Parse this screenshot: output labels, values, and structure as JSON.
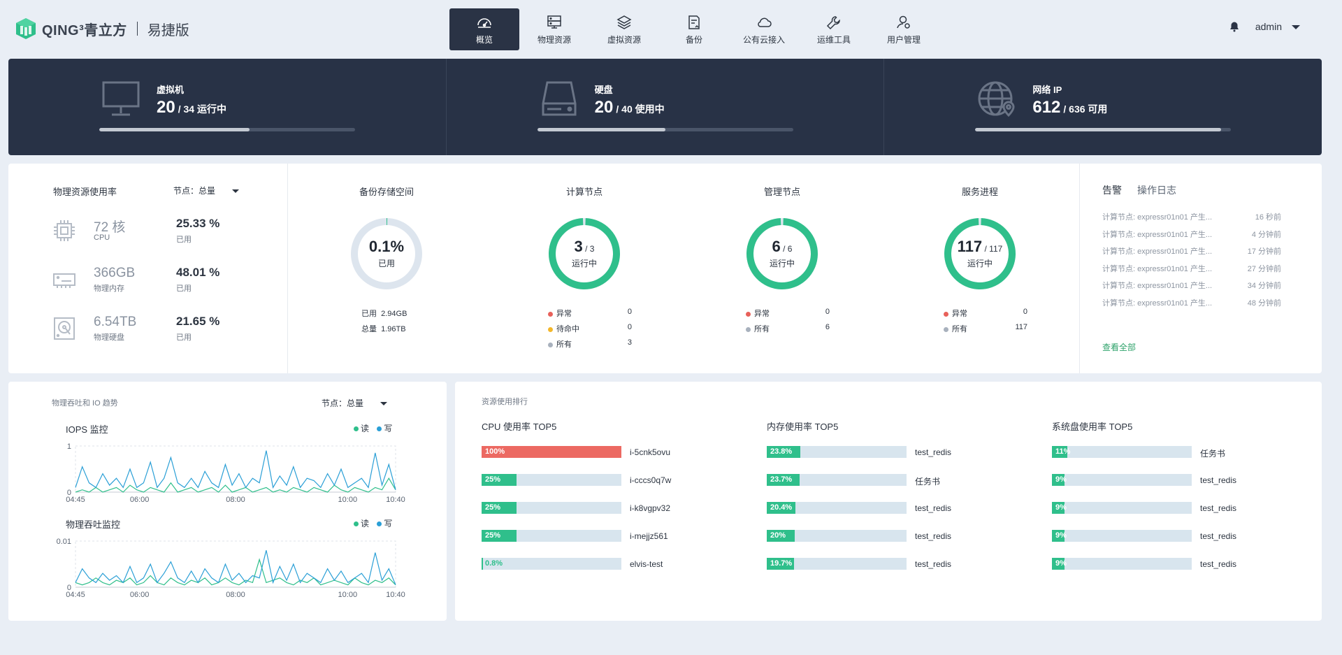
{
  "brand": {
    "name": "QING³青立方",
    "edition": "易捷版"
  },
  "nav": [
    {
      "label": "概览",
      "icon": "dashboard-icon",
      "active": true
    },
    {
      "label": "物理资源",
      "icon": "server-icon",
      "active": false
    },
    {
      "label": "虚拟资源",
      "icon": "layers-icon",
      "active": false
    },
    {
      "label": "备份",
      "icon": "backup-icon",
      "active": false
    },
    {
      "label": "公有云接入",
      "icon": "cloud-icon",
      "active": false
    },
    {
      "label": "运维工具",
      "icon": "wrench-icon",
      "active": false
    },
    {
      "label": "用户管理",
      "icon": "user-icon",
      "active": false
    }
  ],
  "user": {
    "name": "admin"
  },
  "summary": [
    {
      "title": "虚拟机",
      "value": "20",
      "rest": "/ 34 运行中",
      "icon": "monitor-icon",
      "fill": 0.588
    },
    {
      "title": "硬盘",
      "value": "20",
      "rest": "/ 40 使用中",
      "icon": "harddisk-icon",
      "fill": 0.5
    },
    {
      "title": "网络 IP",
      "value": "612",
      "rest": "/ 636 可用",
      "icon": "globe-icon",
      "fill": 0.962
    }
  ],
  "physical": {
    "title": "物理资源使用率",
    "node": "节点：总量",
    "rows": [
      {
        "value": "72 核",
        "sub": "CPU",
        "pct": "25.33 %",
        "pctsub": "已用",
        "icon": "cpu-icon"
      },
      {
        "value": "366GB",
        "sub": "物理内存",
        "pct": "48.01 %",
        "pctsub": "已用",
        "icon": "memory-icon"
      },
      {
        "value": "6.54TB",
        "sub": "物理硬盘",
        "pct": "21.65 %",
        "pctsub": "已用",
        "icon": "disk-icon"
      }
    ]
  },
  "backup": {
    "title": "备份存储空间",
    "value": "0.1%",
    "label": "已用",
    "fraction": 0.001,
    "used_label": "已用",
    "used": "2.94GB",
    "total_label": "总量",
    "total": "1.96TB"
  },
  "compute": {
    "title": "计算节点",
    "value": "3",
    "denom": "/ 3",
    "label": "运行中",
    "fraction": 1,
    "legend": [
      {
        "label": "异常",
        "value": "0",
        "color": "#e8615a"
      },
      {
        "label": "待命中",
        "value": "0",
        "color": "#f3b72a"
      },
      {
        "label": "所有",
        "value": "3",
        "color": "#a8b1bd"
      }
    ]
  },
  "manage": {
    "title": "管理节点",
    "value": "6",
    "denom": "/ 6",
    "label": "运行中",
    "fraction": 1,
    "legend": [
      {
        "label": "异常",
        "value": "0",
        "color": "#e8615a"
      },
      {
        "label": "所有",
        "value": "6",
        "color": "#a8b1bd"
      }
    ]
  },
  "service": {
    "title": "服务进程",
    "value": "117",
    "denom": "/ 117",
    "label": "运行中",
    "fraction": 1,
    "legend": [
      {
        "label": "异常",
        "value": "0",
        "color": "#e8615a"
      },
      {
        "label": "所有",
        "value": "117",
        "color": "#a8b1bd"
      }
    ]
  },
  "alerts": {
    "tab1": "告警",
    "tab2": "操作日志",
    "items": [
      {
        "text": "计算节点: expressr01n01 产生...",
        "time": "16 秒前"
      },
      {
        "text": "计算节点: expressr01n01 产生...",
        "time": "4 分钟前"
      },
      {
        "text": "计算节点: expressr01n01 产生...",
        "time": "17 分钟前"
      },
      {
        "text": "计算节点: expressr01n01 产生...",
        "time": "27 分钟前"
      },
      {
        "text": "计算节点: expressr01n01 产生...",
        "time": "34 分钟前"
      },
      {
        "text": "计算节点: expressr01n01 产生...",
        "time": "48 分钟前"
      }
    ],
    "view_all": "查看全部"
  },
  "trend": {
    "title": "物理吞吐和 IO 趋势",
    "node": "节点：总量",
    "read": "读",
    "write": "写",
    "read_color": "#2fbf8b",
    "write_color": "#2a9fd6"
  },
  "chart_data": [
    {
      "type": "line",
      "title": "IOPS 监控",
      "ylim": [
        0,
        1
      ],
      "yticks": [
        "1",
        "0"
      ],
      "xticks": [
        "04:45",
        "06:00",
        "08:00",
        "10:00",
        "10:40"
      ],
      "series": [
        {
          "name": "读",
          "values": [
            0,
            0.05,
            0,
            0.1,
            0,
            0.05,
            0.1,
            0,
            0.15,
            0.05,
            0,
            0.1,
            0.05,
            0,
            0.2,
            0,
            0.05,
            0.1,
            0,
            0.05,
            0.1,
            0,
            0.15,
            0,
            0.05,
            0.1,
            0,
            0.05,
            0.1,
            0,
            0.05,
            0,
            0.1,
            0.05,
            0,
            0.1,
            0.05,
            0,
            0.15,
            0.05,
            0,
            0.1,
            0.05,
            0,
            0.1,
            0.05,
            0.3,
            0.05
          ]
        },
        {
          "name": "写",
          "values": [
            0.1,
            0.55,
            0.2,
            0.1,
            0.4,
            0.15,
            0.3,
            0.1,
            0.5,
            0.1,
            0.2,
            0.65,
            0.1,
            0.3,
            0.75,
            0.2,
            0.1,
            0.3,
            0.1,
            0.45,
            0.2,
            0.1,
            0.6,
            0.15,
            0.4,
            0.1,
            0.3,
            0.2,
            0.9,
            0.1,
            0.35,
            0.15,
            0.55,
            0.1,
            0.3,
            0.25,
            0.1,
            0.4,
            0.15,
            0.5,
            0.1,
            0.2,
            0.3,
            0.1,
            0.85,
            0.15,
            0.6,
            0.05
          ]
        }
      ]
    },
    {
      "type": "line",
      "title": "物理吞吐监控",
      "ylim": [
        0,
        0.01
      ],
      "yticks": [
        "0.01",
        "0"
      ],
      "xticks": [
        "04:45",
        "06:00",
        "08:00",
        "10:00",
        "10:40"
      ],
      "series": [
        {
          "name": "读",
          "values": [
            0.001,
            0.0005,
            0.001,
            0.002,
            0.001,
            0.0005,
            0.0015,
            0.001,
            0.002,
            0.0005,
            0.001,
            0.0025,
            0.001,
            0.0005,
            0.002,
            0.001,
            0.0005,
            0.0015,
            0.001,
            0.002,
            0.0005,
            0.001,
            0.002,
            0.001,
            0.0005,
            0.0015,
            0.001,
            0.006,
            0.001,
            0.0015,
            0.002,
            0.001,
            0.0005,
            0.0015,
            0.001,
            0.002,
            0.0005,
            0.001,
            0.0015,
            0.001,
            0.0005,
            0.002,
            0.001,
            0.0005,
            0.0015,
            0.001,
            0.002,
            0.0005
          ]
        },
        {
          "name": "写",
          "values": [
            0.001,
            0.004,
            0.002,
            0.001,
            0.003,
            0.0015,
            0.0025,
            0.001,
            0.0045,
            0.001,
            0.002,
            0.005,
            0.001,
            0.003,
            0.0055,
            0.002,
            0.001,
            0.0035,
            0.001,
            0.004,
            0.002,
            0.001,
            0.005,
            0.0015,
            0.003,
            0.001,
            0.0025,
            0.002,
            0.008,
            0.001,
            0.0045,
            0.0015,
            0.005,
            0.001,
            0.003,
            0.002,
            0.001,
            0.004,
            0.0015,
            0.0035,
            0.001,
            0.002,
            0.003,
            0.001,
            0.0075,
            0.0015,
            0.004,
            0.0005
          ]
        }
      ]
    }
  ],
  "ranking": {
    "title": "资源使用排行",
    "cpu": {
      "title": "CPU 使用率 TOP5",
      "items": [
        {
          "pct": "100%",
          "value": 1.0,
          "name": "i-5cnk5ovu",
          "color": "#ec6962"
        },
        {
          "pct": "25%",
          "value": 0.25,
          "name": "i-cccs0q7w",
          "color": "#2fbf8b"
        },
        {
          "pct": "25%",
          "value": 0.25,
          "name": "i-k8vgpv32",
          "color": "#2fbf8b"
        },
        {
          "pct": "25%",
          "value": 0.25,
          "name": "i-mejjz561",
          "color": "#2fbf8b"
        },
        {
          "pct": "0.8%",
          "value": 0.008,
          "name": "elvis-test",
          "color": "#2fbf8b"
        }
      ]
    },
    "mem": {
      "title": "内存使用率 TOP5",
      "items": [
        {
          "pct": "23.8%",
          "value": 0.238,
          "name": "test_redis",
          "color": "#2fbf8b"
        },
        {
          "pct": "23.7%",
          "value": 0.237,
          "name": "任务书",
          "color": "#2fbf8b"
        },
        {
          "pct": "20.4%",
          "value": 0.204,
          "name": "test_redis",
          "color": "#2fbf8b"
        },
        {
          "pct": "20%",
          "value": 0.2,
          "name": "test_redis",
          "color": "#2fbf8b"
        },
        {
          "pct": "19.7%",
          "value": 0.197,
          "name": "test_redis",
          "color": "#2fbf8b"
        }
      ]
    },
    "disk": {
      "title": "系统盘使用率 TOP5",
      "items": [
        {
          "pct": "11%",
          "value": 0.11,
          "name": "任务书",
          "color": "#2fbf8b"
        },
        {
          "pct": "9%",
          "value": 0.09,
          "name": "test_redis",
          "color": "#2fbf8b"
        },
        {
          "pct": "9%",
          "value": 0.09,
          "name": "test_redis",
          "color": "#2fbf8b"
        },
        {
          "pct": "9%",
          "value": 0.09,
          "name": "test_redis",
          "color": "#2fbf8b"
        },
        {
          "pct": "9%",
          "value": 0.09,
          "name": "test_redis",
          "color": "#2fbf8b"
        }
      ]
    }
  }
}
